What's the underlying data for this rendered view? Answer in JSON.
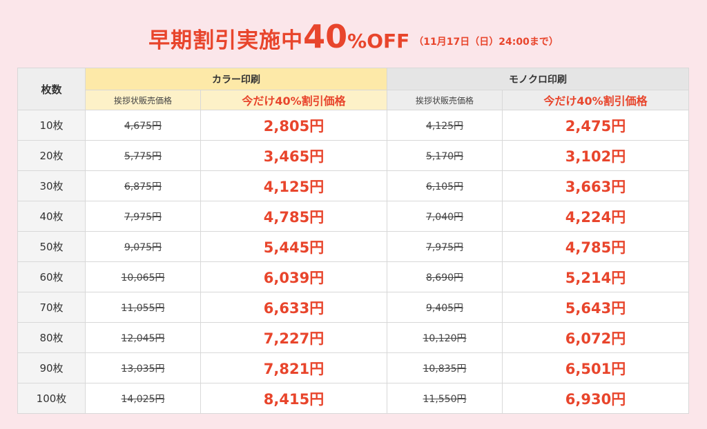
{
  "headline": {
    "main": "早期割引実施中",
    "percent": "40",
    "off": "%OFF",
    "date": "（11月17日（日）24:00まで）"
  },
  "table": {
    "count_header": "枚数",
    "color_header": "カラー印刷",
    "mono_header": "モノクロ印刷",
    "regular_label": "挨拶状販売価格",
    "discount_label": "今だけ40%割引価格",
    "rows": [
      {
        "count": "10枚",
        "color_regular": "4,675円",
        "color_sale": "2,805円",
        "mono_regular": "4,125円",
        "mono_sale": "2,475円"
      },
      {
        "count": "20枚",
        "color_regular": "5,775円",
        "color_sale": "3,465円",
        "mono_regular": "5,170円",
        "mono_sale": "3,102円"
      },
      {
        "count": "30枚",
        "color_regular": "6,875円",
        "color_sale": "4,125円",
        "mono_regular": "6,105円",
        "mono_sale": "3,663円"
      },
      {
        "count": "40枚",
        "color_regular": "7,975円",
        "color_sale": "4,785円",
        "mono_regular": "7,040円",
        "mono_sale": "4,224円"
      },
      {
        "count": "50枚",
        "color_regular": "9,075円",
        "color_sale": "5,445円",
        "mono_regular": "7,975円",
        "mono_sale": "4,785円"
      },
      {
        "count": "60枚",
        "color_regular": "10,065円",
        "color_sale": "6,039円",
        "mono_regular": "8,690円",
        "mono_sale": "5,214円"
      },
      {
        "count": "70枚",
        "color_regular": "11,055円",
        "color_sale": "6,633円",
        "mono_regular": "9,405円",
        "mono_sale": "5,643円"
      },
      {
        "count": "80枚",
        "color_regular": "12,045円",
        "color_sale": "7,227円",
        "mono_regular": "10,120円",
        "mono_sale": "6,072円"
      },
      {
        "count": "90枚",
        "color_regular": "13,035円",
        "color_sale": "7,821円",
        "mono_regular": "10,835円",
        "mono_sale": "6,501円"
      },
      {
        "count": "100枚",
        "color_regular": "14,025円",
        "color_sale": "8,415円",
        "mono_regular": "11,550円",
        "mono_sale": "6,930円"
      }
    ]
  },
  "colors": {
    "accent_red": "#e8452c",
    "background_pink": "#fbe6ea",
    "color_header_yellow": "#fde9a8",
    "mono_header_gray": "#e5e5e5"
  }
}
